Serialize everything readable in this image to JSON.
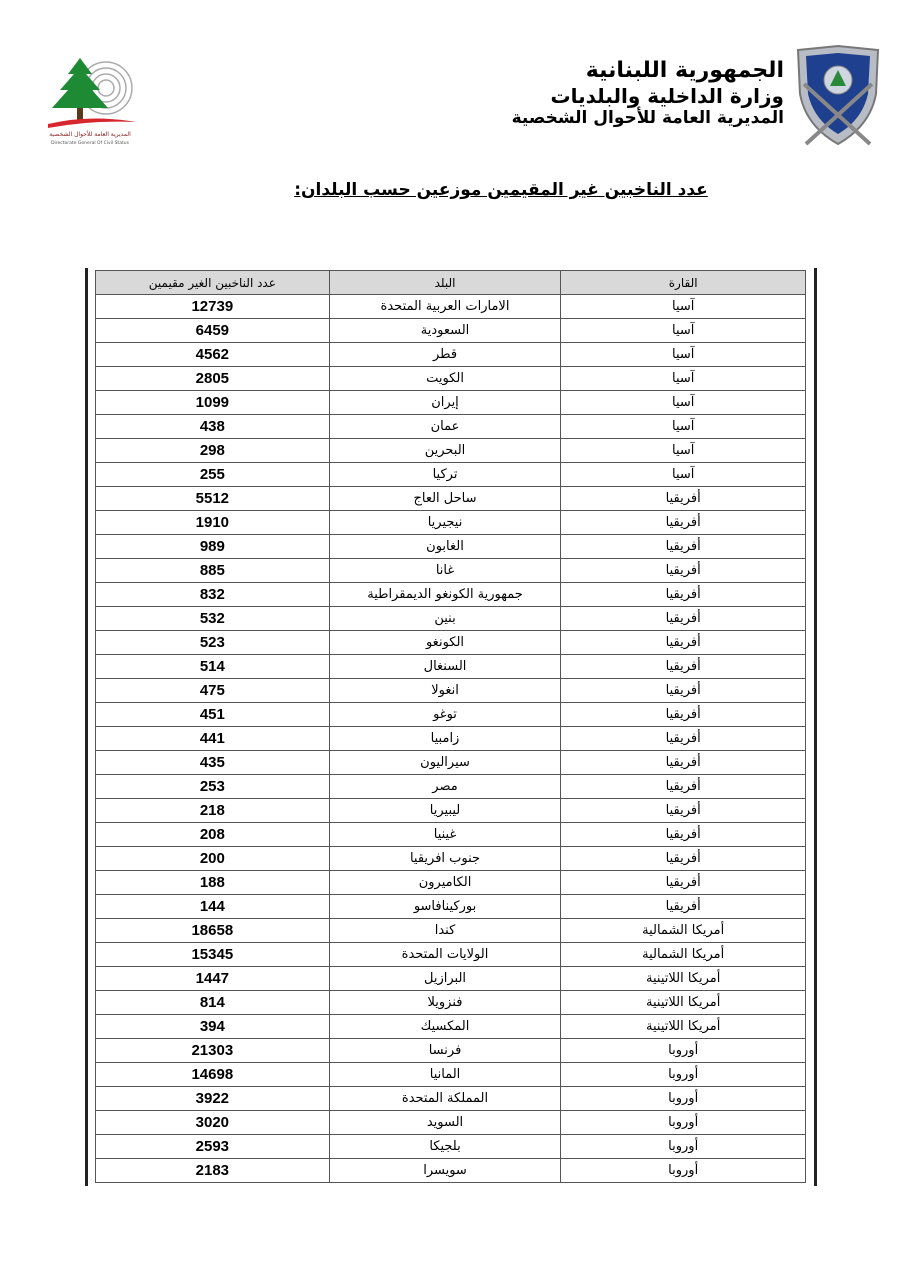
{
  "header": {
    "line1": "الجمهورية اللبنانية",
    "line2": "وزارة الداخلية والبلديات",
    "line3": "المديرية العامة للأحوال الشخصية",
    "logo_text_ar": "المديرية العامة للأحوال الشخصية",
    "logo_text_en": "Directorate General Of Civil Status"
  },
  "title": "عدد الناخبين غير المقيمين موزعين حسب البلدان:",
  "table": {
    "columns": [
      "القارة",
      "البلد",
      "عدد الناخبين الغير مقيمين"
    ],
    "rows": [
      [
        "آسيا",
        "الامارات العربية المتحدة",
        "12739"
      ],
      [
        "آسيا",
        "السعودية",
        "6459"
      ],
      [
        "آسيا",
        "قطر",
        "4562"
      ],
      [
        "آسيا",
        "الكويت",
        "2805"
      ],
      [
        "آسيا",
        "إيران",
        "1099"
      ],
      [
        "آسيا",
        "عمان",
        "438"
      ],
      [
        "آسيا",
        "البحرين",
        "298"
      ],
      [
        "آسيا",
        "تركيا",
        "255"
      ],
      [
        "أفريقيا",
        "ساحل العاج",
        "5512"
      ],
      [
        "أفريقيا",
        "نيجيريا",
        "1910"
      ],
      [
        "أفريقيا",
        "الغابون",
        "989"
      ],
      [
        "أفريقيا",
        "غانا",
        "885"
      ],
      [
        "أفريقيا",
        "جمهورية الكونغو الديمقراطية",
        "832"
      ],
      [
        "أفريقيا",
        "بنين",
        "532"
      ],
      [
        "أفريقيا",
        "الكونغو",
        "523"
      ],
      [
        "أفريقيا",
        "السنغال",
        "514"
      ],
      [
        "أفريقيا",
        "انغولا",
        "475"
      ],
      [
        "أفريقيا",
        "توغو",
        "451"
      ],
      [
        "أفريقيا",
        "زامبيا",
        "441"
      ],
      [
        "أفريقيا",
        "سيراليون",
        "435"
      ],
      [
        "أفريقيا",
        "مصر",
        "253"
      ],
      [
        "أفريقيا",
        "ليبيريا",
        "218"
      ],
      [
        "أفريقيا",
        "غينيا",
        "208"
      ],
      [
        "أفريقيا",
        "جنوب افريقيا",
        "200"
      ],
      [
        "أفريقيا",
        "الكاميرون",
        "188"
      ],
      [
        "أفريقيا",
        "بوركينافاسو",
        "144"
      ],
      [
        "أمريكا الشمالية",
        "كندا",
        "18658"
      ],
      [
        "أمريكا الشمالية",
        "الولايات المتحدة",
        "15345"
      ],
      [
        "أمريكا اللاتينية",
        "البرازيل",
        "1447"
      ],
      [
        "أمريكا اللاتينية",
        "فنزويلا",
        "814"
      ],
      [
        "أمريكا اللاتينية",
        "المكسيك",
        "394"
      ],
      [
        "أوروبا",
        "فرنسا",
        "21303"
      ],
      [
        "أوروبا",
        "المانيا",
        "14698"
      ],
      [
        "أوروبا",
        "المملكة المتحدة",
        "3922"
      ],
      [
        "أوروبا",
        "السويد",
        "3020"
      ],
      [
        "أوروبا",
        "بلجيكا",
        "2593"
      ],
      [
        "أوروبا",
        "سويسرا",
        "2183"
      ]
    ]
  }
}
